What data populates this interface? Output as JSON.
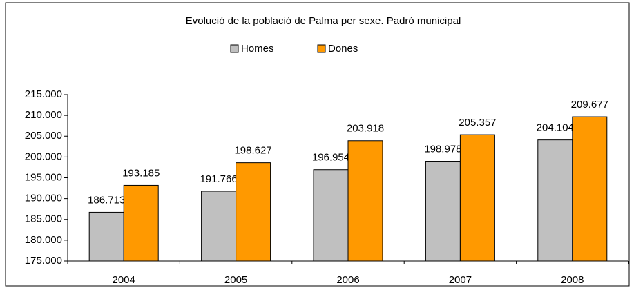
{
  "chart_data": {
    "type": "bar",
    "title": "Evolució de la població de Palma per sexe. Padró municipal",
    "categories": [
      "2004",
      "2005",
      "2006",
      "2007",
      "2008"
    ],
    "series": [
      {
        "name": "Homes",
        "color": "#c0c0c0",
        "values": [
          186713,
          191766,
          196954,
          198978,
          204104
        ],
        "value_labels": [
          "186.713",
          "191.766",
          "196.954",
          "198.978",
          "204.104"
        ]
      },
      {
        "name": "Dones",
        "color": "#ff9900",
        "values": [
          193185,
          198627,
          203918,
          205357,
          209677
        ],
        "value_labels": [
          "193.185",
          "198.627",
          "203.918",
          "205.357",
          "209.677"
        ]
      }
    ],
    "ylim": [
      175000,
      215000
    ],
    "yticks": [
      {
        "value": 175000,
        "label": "175.000"
      },
      {
        "value": 180000,
        "label": "180.000"
      },
      {
        "value": 185000,
        "label": "185.000"
      },
      {
        "value": 190000,
        "label": "190.000"
      },
      {
        "value": 195000,
        "label": "195.000"
      },
      {
        "value": 200000,
        "label": "200.000"
      },
      {
        "value": 205000,
        "label": "205.000"
      },
      {
        "value": 210000,
        "label": "210.000"
      },
      {
        "value": 215000,
        "label": "215.000"
      }
    ],
    "grid": false,
    "legend": "top"
  }
}
